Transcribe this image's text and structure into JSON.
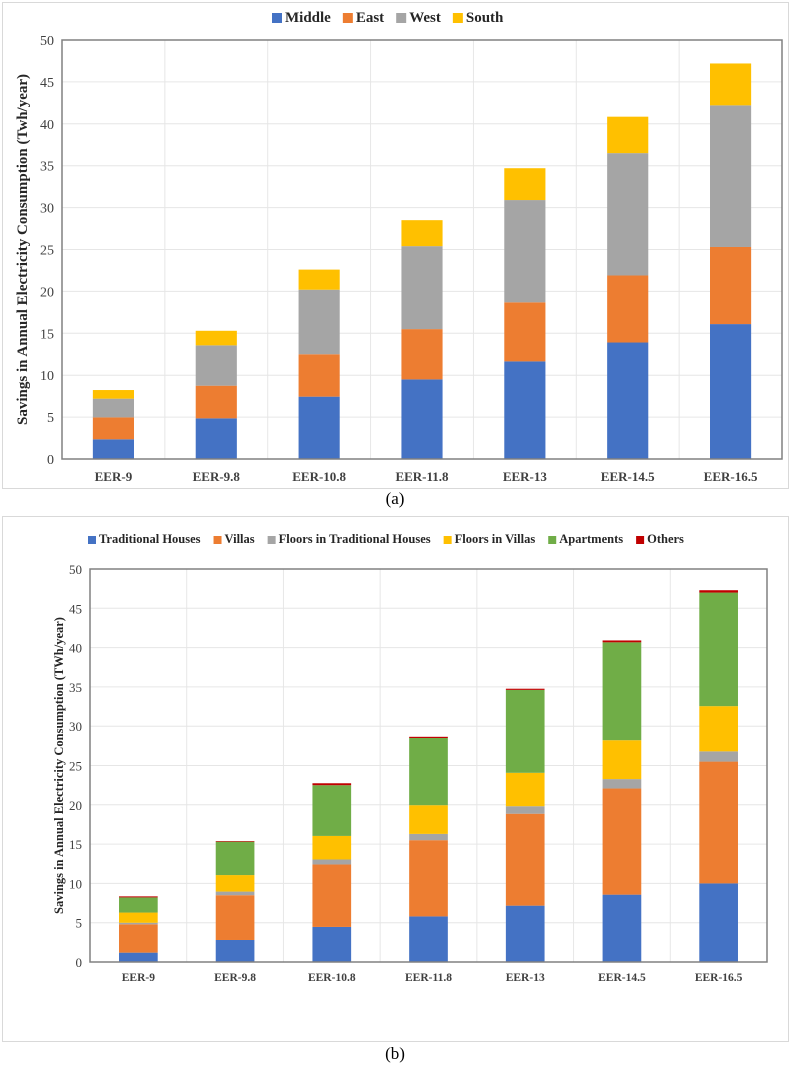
{
  "chart_data": [
    {
      "type": "bar",
      "stacked": true,
      "caption": "(a)",
      "title": "",
      "xlabel": "",
      "ylabel": "Savings in Annual Electricity  Consumption (Twh/year)",
      "ylim": [
        0,
        50
      ],
      "yticks": [
        0,
        5,
        10,
        15,
        20,
        25,
        30,
        35,
        40,
        45,
        50
      ],
      "grid": true,
      "legend_position": "top-center",
      "categories": [
        "EER-9",
        "EER-9.8",
        "EER-10.8",
        "EER-11.8",
        "EER-13",
        "EER-14.5",
        "EER-16.5"
      ],
      "series": [
        {
          "name": "Middle",
          "color": "#4472C4",
          "values": [
            2.35,
            4.85,
            7.44,
            9.5,
            11.65,
            13.9,
            16.1
          ]
        },
        {
          "name": "East",
          "color": "#ED7D31",
          "values": [
            2.62,
            3.9,
            5.06,
            6.0,
            7.05,
            8.0,
            9.2
          ]
        },
        {
          "name": "West",
          "color": "#A5A5A5",
          "values": [
            2.23,
            4.81,
            7.7,
            9.9,
            12.2,
            14.6,
            16.9
          ]
        },
        {
          "name": "South",
          "color": "#FFC000",
          "values": [
            1.03,
            1.74,
            2.4,
            3.1,
            3.8,
            4.35,
            5.0
          ]
        }
      ]
    },
    {
      "type": "bar",
      "stacked": true,
      "caption": "(b)",
      "title": "",
      "xlabel": "",
      "ylabel": "Savings in Annual Electricity Consumption (TWh/year)",
      "ylim": [
        0,
        50
      ],
      "yticks": [
        0,
        5,
        10,
        15,
        20,
        25,
        30,
        35,
        40,
        45,
        50
      ],
      "grid": true,
      "legend_position": "top-center",
      "categories": [
        "EER-9",
        "EER-9.8",
        "EER-10.8",
        "EER-11.8",
        "EER-13",
        "EER-14.5",
        "EER-16.5"
      ],
      "series": [
        {
          "name": "Traditional Houses",
          "color": "#4472C4",
          "values": [
            1.19,
            2.8,
            4.46,
            5.8,
            7.17,
            8.57,
            10.0
          ]
        },
        {
          "name": "Villas",
          "color": "#ED7D31",
          "values": [
            3.6,
            5.7,
            7.95,
            9.7,
            11.7,
            13.5,
            15.5
          ]
        },
        {
          "name": "Floors in Traditional Houses",
          "color": "#A5A5A5",
          "values": [
            0.2,
            0.46,
            0.63,
            0.8,
            0.95,
            1.2,
            1.3
          ]
        },
        {
          "name": "Floors in Villas",
          "color": "#FFC000",
          "values": [
            1.3,
            2.1,
            3.0,
            3.65,
            4.25,
            4.95,
            5.75
          ]
        },
        {
          "name": "Apartments",
          "color": "#70AD47",
          "values": [
            1.93,
            4.25,
            6.45,
            8.55,
            10.55,
            12.45,
            14.45
          ]
        },
        {
          "name": "Others",
          "color": "#C00000",
          "values": [
            0.13,
            0.08,
            0.25,
            0.15,
            0.15,
            0.24,
            0.3
          ]
        }
      ]
    }
  ]
}
